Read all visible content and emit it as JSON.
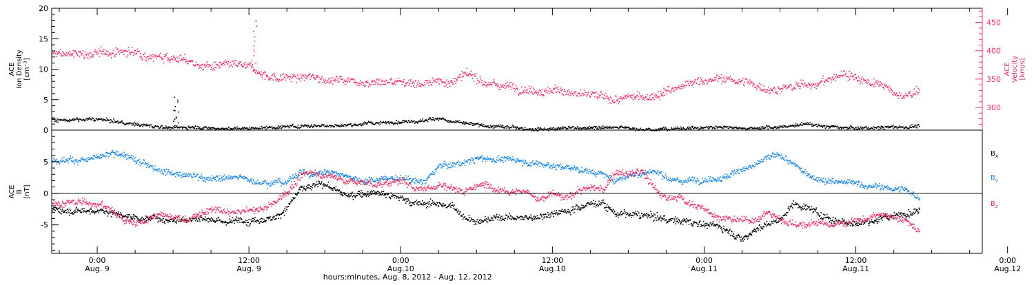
{
  "chart_data": [
    {
      "type": "scatter",
      "panel": "top",
      "left_axis": {
        "label_lines": [
          "ACE",
          "Ion Density",
          "[cm⁻³]"
        ],
        "ticks": [
          "0",
          "5",
          "10",
          "15",
          "20"
        ],
        "ylim": [
          0,
          20
        ]
      },
      "right_axis": {
        "label_lines": [
          "ACE",
          "Velocity",
          "[km/s]"
        ],
        "ticks": [
          "300",
          "350",
          "400",
          "450"
        ],
        "ylim": [
          260,
          475
        ]
      },
      "series": [
        {
          "name": "",
          "axis": "right",
          "color": "#e8305f",
          "anchors": [
            [
              0,
              395
            ],
            [
              2,
              400
            ],
            [
              4,
              395
            ],
            [
              6,
              392
            ],
            [
              7,
              385
            ],
            [
              8,
              375
            ],
            [
              10,
              372
            ],
            [
              11,
              372
            ],
            [
              12,
              368
            ],
            [
              13,
              360
            ],
            [
              14,
              355
            ],
            [
              16,
              353
            ],
            [
              18,
              352
            ],
            [
              20,
              350
            ],
            [
              22,
              348
            ],
            [
              24,
              347
            ],
            [
              26,
              345
            ],
            [
              28,
              348
            ],
            [
              29,
              355
            ],
            [
              30,
              352
            ],
            [
              31,
              343
            ],
            [
              33,
              338
            ],
            [
              35,
              335
            ],
            [
              37,
              330
            ],
            [
              39,
              320
            ],
            [
              41,
              312
            ],
            [
              43,
              318
            ],
            [
              45,
              330
            ],
            [
              47,
              340
            ],
            [
              48,
              350
            ],
            [
              50,
              350
            ],
            [
              53,
              335
            ],
            [
              55,
              335
            ],
            [
              58,
              350
            ],
            [
              59,
              360
            ],
            [
              60,
              355
            ],
            [
              62,
              340
            ],
            [
              63,
              322
            ],
            [
              64,
              320
            ],
            [
              65,
              335
            ]
          ],
          "noise": 7,
          "spikes": [
            [
              12.4,
              465
            ]
          ]
        },
        {
          "name": "",
          "axis": "left",
          "color": "#000000",
          "anchors": [
            [
              0,
              1.8
            ],
            [
              2,
              1.3
            ],
            [
              4,
              0.8
            ],
            [
              6,
              0.5
            ],
            [
              8,
              0.6
            ],
            [
              10,
              0.4
            ],
            [
              12,
              0.4
            ],
            [
              14,
              0.6
            ],
            [
              16,
              0.8
            ],
            [
              18,
              0.9
            ],
            [
              20,
              1.0
            ],
            [
              22,
              1.2
            ],
            [
              24,
              1.5
            ],
            [
              26,
              1.8
            ],
            [
              27,
              2.2
            ],
            [
              28,
              1.4
            ],
            [
              30,
              0.8
            ],
            [
              32,
              0.5
            ],
            [
              34,
              0.4
            ],
            [
              36,
              0.4
            ],
            [
              38,
              0.5
            ],
            [
              40,
              0.5
            ],
            [
              42,
              0.4
            ],
            [
              44,
              0.3
            ],
            [
              46,
              0.4
            ],
            [
              48,
              0.5
            ],
            [
              50,
              0.6
            ],
            [
              52,
              0.5
            ],
            [
              54,
              0.6
            ],
            [
              56,
              1.0
            ],
            [
              58,
              0.6
            ],
            [
              60,
              0.4
            ],
            [
              62,
              0.5
            ],
            [
              64,
              0.6
            ],
            [
              65,
              0.8
            ]
          ],
          "noise": 0.25,
          "spikes": [
            [
              6.2,
              5.5
            ]
          ]
        }
      ]
    },
    {
      "type": "scatter",
      "panel": "bottom",
      "left_axis": {
        "label_lines": [
          "ACE",
          "B",
          "[nT]"
        ],
        "ticks": [
          "-5",
          "0",
          "5"
        ],
        "ylim": [
          -9.5,
          10
        ]
      },
      "series": [
        {
          "name": "B",
          "legend_sub": "x",
          "color": "#000000",
          "anchors": [
            [
              0,
              -2.5
            ],
            [
              2,
              -3.5
            ],
            [
              4,
              -3.8
            ],
            [
              6,
              -4.0
            ],
            [
              8,
              -3.5
            ],
            [
              10,
              -4.5
            ],
            [
              12,
              -4.2
            ],
            [
              14,
              -3.5
            ],
            [
              15,
              -2.0
            ],
            [
              16,
              0.5
            ],
            [
              18,
              1.5
            ],
            [
              20,
              -0.5
            ],
            [
              22,
              0.5
            ],
            [
              24,
              -0.5
            ],
            [
              25,
              -1.5
            ],
            [
              27,
              -1.5
            ],
            [
              28,
              -2.0
            ],
            [
              29,
              -3.5
            ],
            [
              30,
              -4.2
            ],
            [
              32,
              -3.6
            ],
            [
              34,
              -3.8
            ],
            [
              36,
              -3.0
            ],
            [
              38,
              -2.0
            ],
            [
              39,
              -1.5
            ],
            [
              40,
              -1.5
            ],
            [
              41,
              -3.0
            ],
            [
              43,
              -3.5
            ],
            [
              45,
              -4.0
            ],
            [
              47,
              -4.5
            ],
            [
              49,
              -5.0
            ],
            [
              50,
              -6.0
            ],
            [
              51,
              -7.0
            ],
            [
              52,
              -5.5
            ],
            [
              54,
              -4.0
            ],
            [
              55,
              -1.5
            ],
            [
              56,
              -2.0
            ],
            [
              57,
              -3.0
            ],
            [
              58,
              -4.0
            ],
            [
              60,
              -4.5
            ],
            [
              62,
              -4.0
            ],
            [
              64,
              -3.0
            ],
            [
              65,
              -2.5
            ]
          ],
          "noise": 0.5
        },
        {
          "name": "B",
          "legend_sub": "y",
          "color": "#1a86e0",
          "anchors": [
            [
              0,
              5.5
            ],
            [
              1,
              6.0
            ],
            [
              2,
              6.2
            ],
            [
              3,
              5.0
            ],
            [
              5,
              4.0
            ],
            [
              7,
              3.0
            ],
            [
              9,
              2.5
            ],
            [
              11,
              2.5
            ],
            [
              13,
              2.0
            ],
            [
              15,
              2.0
            ],
            [
              16,
              3.5
            ],
            [
              17,
              3.0
            ],
            [
              18,
              3.5
            ],
            [
              20,
              3.0
            ],
            [
              21,
              2.0
            ],
            [
              23,
              2.5
            ],
            [
              25,
              2.0
            ],
            [
              26,
              2.0
            ],
            [
              27,
              4.5
            ],
            [
              28,
              4.5
            ],
            [
              30,
              5.5
            ],
            [
              32,
              5.5
            ],
            [
              34,
              5.0
            ],
            [
              36,
              4.5
            ],
            [
              38,
              4.0
            ],
            [
              40,
              3.0
            ],
            [
              41,
              2.0
            ],
            [
              42,
              3.0
            ],
            [
              44,
              3.5
            ],
            [
              46,
              2.0
            ],
            [
              48,
              2.5
            ],
            [
              50,
              3.0
            ],
            [
              51,
              4.0
            ],
            [
              52,
              4.5
            ],
            [
              53,
              5.5
            ],
            [
              54,
              6.0
            ],
            [
              55,
              4.5
            ],
            [
              56,
              3.0
            ],
            [
              57,
              2.5
            ],
            [
              58,
              2.0
            ],
            [
              60,
              1.5
            ],
            [
              62,
              1.0
            ],
            [
              64,
              0.5
            ],
            [
              65,
              -0.5
            ]
          ],
          "noise": 0.45
        },
        {
          "name": "B",
          "legend_sub": "z",
          "color": "#e8305f",
          "anchors": [
            [
              0,
              -1.5
            ],
            [
              1,
              -2.5
            ],
            [
              2,
              -4.0
            ],
            [
              3,
              -4.5
            ],
            [
              5,
              -3.5
            ],
            [
              7,
              -4.0
            ],
            [
              8,
              -3.5
            ],
            [
              9,
              -2.5
            ],
            [
              10,
              -3.0
            ],
            [
              11,
              -3.0
            ],
            [
              13,
              -2.5
            ],
            [
              14,
              -1.5
            ],
            [
              15,
              0.5
            ],
            [
              16,
              2.5
            ],
            [
              17,
              3.5
            ],
            [
              18,
              3.0
            ],
            [
              19,
              2.5
            ],
            [
              20,
              2.0
            ],
            [
              22,
              1.5
            ],
            [
              24,
              2.0
            ],
            [
              25,
              1.0
            ],
            [
              26,
              1.0
            ],
            [
              27,
              1.5
            ],
            [
              28,
              1.0
            ],
            [
              29,
              0.5
            ],
            [
              30,
              1.5
            ],
            [
              32,
              1.0
            ],
            [
              34,
              0.5
            ],
            [
              35,
              -1.0
            ],
            [
              36,
              0.0
            ],
            [
              37,
              -1.0
            ],
            [
              38,
              0.5
            ],
            [
              39,
              1.0
            ],
            [
              40,
              0.5
            ],
            [
              41,
              3.5
            ],
            [
              42,
              3.0
            ],
            [
              43,
              3.5
            ],
            [
              44,
              1.0
            ],
            [
              45,
              -1.0
            ],
            [
              46,
              -0.5
            ],
            [
              47,
              -1.5
            ],
            [
              48,
              -2.5
            ],
            [
              49,
              -3.5
            ],
            [
              50,
              -4.0
            ],
            [
              51,
              -4.5
            ],
            [
              52,
              -4.0
            ],
            [
              53,
              -3.0
            ],
            [
              54,
              -4.0
            ],
            [
              55,
              -4.5
            ],
            [
              56,
              -5.0
            ],
            [
              57,
              -4.5
            ],
            [
              58,
              -5.0
            ],
            [
              60,
              -4.0
            ],
            [
              62,
              -3.5
            ],
            [
              64,
              -4.5
            ],
            [
              65,
              -6.0
            ]
          ],
          "noise": 0.5
        }
      ]
    }
  ],
  "x_axis": {
    "xlim": [
      -3.6,
      70.0
    ],
    "data_end": 65,
    "ticks": [
      {
        "hours": 0,
        "time": "0:00",
        "day": "Aug. 9"
      },
      {
        "hours": 12,
        "time": "12:00",
        "day": "Aug. 9"
      },
      {
        "hours": 24,
        "time": "0:00",
        "day": "Aug.10"
      },
      {
        "hours": 36,
        "time": "12:00",
        "day": "Aug.10"
      },
      {
        "hours": 48,
        "time": "0:00",
        "day": "Aug.11"
      },
      {
        "hours": 60,
        "time": "12:00",
        "day": "Aug.11"
      },
      {
        "hours": 72,
        "time": "0:00",
        "day": "Aug.12"
      }
    ],
    "label": "hours:minutes, Aug.  8, 2012 - Aug. 12, 2012"
  }
}
